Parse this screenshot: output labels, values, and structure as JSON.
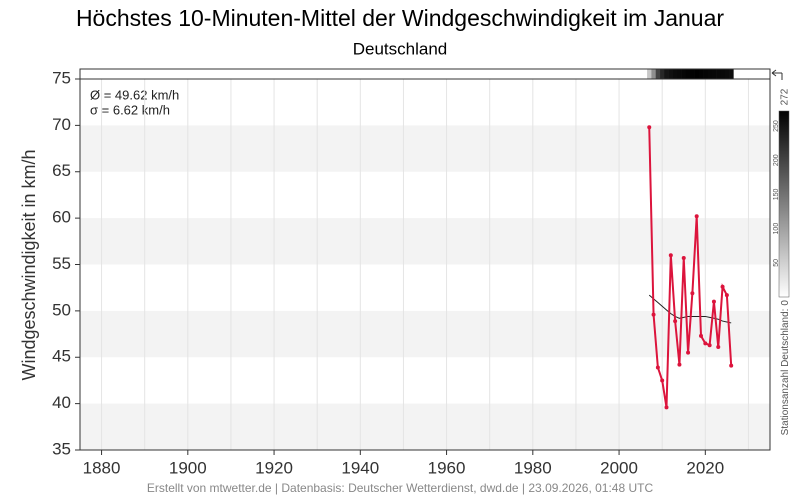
{
  "chart_data": {
    "type": "line",
    "title": "Höchstes 10-Minuten-Mittel der Windgeschwindigkeit im Januar",
    "subtitle": "Deutschland",
    "y_label": "Windgeschwindigkeit in km/h",
    "annotations": [
      "Ø = 49.62 km/h",
      "σ = 6.62 km/h"
    ],
    "footer": "Erstellt von mtwetter.de | Datenbasis: Deutscher Wetterdienst, dwd.de | 23.09.2026, 01:48 UTC",
    "x": [
      2007,
      2008,
      2009,
      2010,
      2011,
      2012,
      2013,
      2014,
      2015,
      2016,
      2017,
      2018,
      2019,
      2020,
      2021,
      2022,
      2023,
      2024,
      2025,
      2026
    ],
    "series": [
      {
        "color": "#dc143c",
        "values": [
          69.8,
          49.6,
          43.9,
          42.5,
          39.6,
          56.0,
          48.9,
          44.2,
          55.7,
          45.5,
          51.9,
          60.2,
          47.3,
          46.5,
          46.3,
          51.0,
          46.1,
          52.6,
          51.7,
          44.1
        ]
      }
    ],
    "trend": {
      "color": "#222222",
      "values": [
        51.7,
        51.3,
        50.9,
        50.5,
        50.1,
        49.7,
        49.4,
        49.2,
        49.3,
        49.4,
        49.4,
        49.4,
        49.4,
        49.4,
        49.3,
        49.2,
        49.1,
        48.9,
        48.8,
        48.7
      ]
    },
    "station_counts": [
      60,
      120,
      200,
      230,
      250,
      255,
      260,
      262,
      265,
      268,
      270,
      272,
      270,
      268,
      266,
      265,
      264,
      262,
      260,
      258
    ],
    "colorbar": {
      "label": "Stationsanzahl Deutschland:",
      "clim": [
        0,
        272
      ],
      "ticks": [
        50,
        100,
        150,
        200,
        250
      ]
    },
    "xlim": [
      1875,
      2035
    ],
    "xticks": [
      1880,
      1900,
      1920,
      1940,
      1960,
      1980,
      2000,
      2020
    ],
    "xgrid": [
      1880,
      1890,
      1900,
      1910,
      1920,
      1930,
      1940,
      1950,
      1960,
      1970,
      1980,
      1990,
      2000,
      2010,
      2020,
      2030
    ],
    "ylim": [
      35,
      75
    ],
    "yticks": [
      35,
      40,
      45,
      50,
      55,
      60,
      65,
      70,
      75
    ],
    "banded_grid": true
  }
}
